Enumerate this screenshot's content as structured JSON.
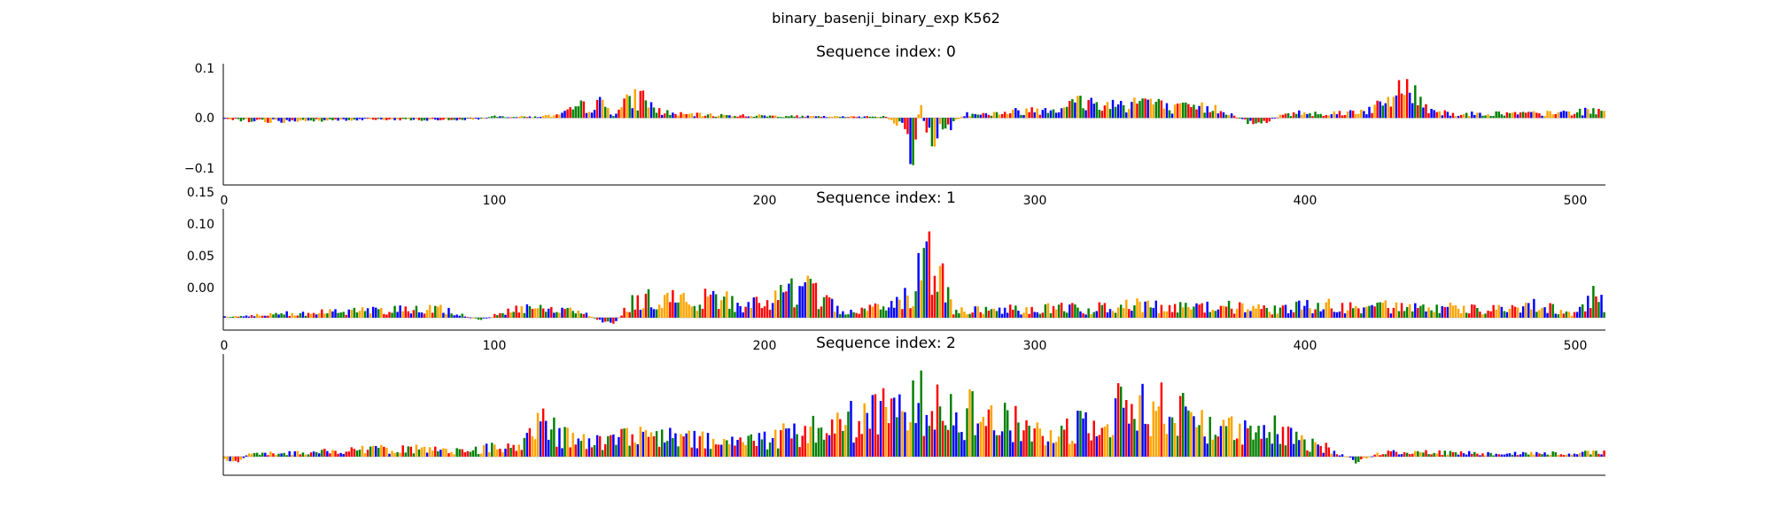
{
  "figure": {
    "suptitle": "binary_basenji_binary_exp K562"
  },
  "palette": {
    "A": "#008000",
    "C": "#0000ff",
    "G": "#ffa500",
    "T": "#ff0000"
  },
  "chart_data": [
    {
      "type": "sequence-logo",
      "title": "Sequence index: 0",
      "xlim": [
        0,
        512
      ],
      "ylim": [
        -0.13,
        0.105
      ],
      "xticks": [
        "0",
        "100",
        "200",
        "300",
        "400",
        "500"
      ],
      "yticks": [
        "0.1",
        "0.0",
        "−0.1"
      ],
      "ytick_values": [
        0.1,
        0.0,
        -0.1
      ],
      "profile": [
        [
          0,
          -0.002
        ],
        [
          10,
          -0.008
        ],
        [
          20,
          -0.01
        ],
        [
          40,
          -0.006
        ],
        [
          60,
          -0.004
        ],
        [
          80,
          -0.006
        ],
        [
          95,
          -0.003
        ],
        [
          100,
          0.004
        ],
        [
          115,
          0.003
        ],
        [
          125,
          0.008
        ],
        [
          132,
          0.03
        ],
        [
          140,
          0.038
        ],
        [
          145,
          0.012
        ],
        [
          150,
          0.045
        ],
        [
          156,
          0.06
        ],
        [
          160,
          0.02
        ],
        [
          168,
          0.01
        ],
        [
          180,
          0.008
        ],
        [
          200,
          0.006
        ],
        [
          215,
          0.004
        ],
        [
          230,
          0.003
        ],
        [
          245,
          0.005
        ],
        [
          250,
          -0.02
        ],
        [
          253,
          -0.05
        ],
        [
          256,
          -0.12
        ],
        [
          258,
          0.05
        ],
        [
          261,
          -0.07
        ],
        [
          265,
          -0.04
        ],
        [
          270,
          -0.02
        ],
        [
          275,
          0.015
        ],
        [
          282,
          0.01
        ],
        [
          290,
          0.015
        ],
        [
          300,
          0.022
        ],
        [
          310,
          0.03
        ],
        [
          318,
          0.045
        ],
        [
          326,
          0.035
        ],
        [
          334,
          0.04
        ],
        [
          342,
          0.05
        ],
        [
          350,
          0.025
        ],
        [
          360,
          0.028
        ],
        [
          370,
          0.025
        ],
        [
          378,
          -0.01
        ],
        [
          385,
          -0.015
        ],
        [
          392,
          0.008
        ],
        [
          400,
          0.015
        ],
        [
          410,
          0.012
        ],
        [
          420,
          0.018
        ],
        [
          428,
          0.03
        ],
        [
          433,
          0.05
        ],
        [
          437,
          0.1
        ],
        [
          441,
          0.06
        ],
        [
          446,
          0.03
        ],
        [
          455,
          0.01
        ],
        [
          470,
          0.012
        ],
        [
          490,
          0.012
        ],
        [
          512,
          0.02
        ]
      ]
    },
    {
      "type": "sequence-logo",
      "title": "Sequence index: 1",
      "xlim": [
        0,
        512
      ],
      "ylim": [
        -0.02,
        0.175
      ],
      "xticks": [
        "0",
        "100",
        "200",
        "300",
        "400",
        "500"
      ],
      "yticks": [
        "0.15",
        "0.10",
        "0.05",
        "0.00"
      ],
      "ytick_values": [
        0.15,
        0.1,
        0.05,
        0.0
      ],
      "profile": [
        [
          0,
          0.002
        ],
        [
          15,
          0.006
        ],
        [
          25,
          0.01
        ],
        [
          35,
          0.012
        ],
        [
          50,
          0.015
        ],
        [
          65,
          0.018
        ],
        [
          80,
          0.02
        ],
        [
          95,
          -0.005
        ],
        [
          105,
          0.015
        ],
        [
          115,
          0.025
        ],
        [
          125,
          0.02
        ],
        [
          135,
          0.01
        ],
        [
          140,
          -0.012
        ],
        [
          145,
          -0.015
        ],
        [
          150,
          0.03
        ],
        [
          160,
          0.045
        ],
        [
          170,
          0.04
        ],
        [
          180,
          0.045
        ],
        [
          190,
          0.035
        ],
        [
          200,
          0.03
        ],
        [
          210,
          0.055
        ],
        [
          216,
          0.07
        ],
        [
          222,
          0.04
        ],
        [
          230,
          0.01
        ],
        [
          240,
          0.02
        ],
        [
          250,
          0.03
        ],
        [
          256,
          0.07
        ],
        [
          259,
          0.17
        ],
        [
          262,
          0.12
        ],
        [
          265,
          0.1
        ],
        [
          270,
          0.02
        ],
        [
          280,
          0.018
        ],
        [
          290,
          0.02
        ],
        [
          300,
          0.02
        ],
        [
          310,
          0.022
        ],
        [
          320,
          0.02
        ],
        [
          330,
          0.025
        ],
        [
          340,
          0.028
        ],
        [
          350,
          0.025
        ],
        [
          360,
          0.022
        ],
        [
          370,
          0.025
        ],
        [
          380,
          0.02
        ],
        [
          390,
          0.02
        ],
        [
          400,
          0.025
        ],
        [
          410,
          0.028
        ],
        [
          420,
          0.02
        ],
        [
          430,
          0.025
        ],
        [
          440,
          0.02
        ],
        [
          450,
          0.022
        ],
        [
          460,
          0.02
        ],
        [
          470,
          0.018
        ],
        [
          480,
          0.022
        ],
        [
          488,
          0.03
        ],
        [
          495,
          0.015
        ],
        [
          500,
          0.01
        ],
        [
          504,
          0.02
        ],
        [
          508,
          0.06
        ],
        [
          512,
          0.02
        ]
      ]
    },
    {
      "type": "sequence-logo",
      "title": "Sequence index: 2",
      "xlim": [
        0,
        512
      ],
      "ylim": [
        -0.02,
        0.11
      ],
      "xticks": [],
      "yticks": [],
      "ytick_values": [],
      "profile": [
        [
          0,
          -0.005
        ],
        [
          5,
          -0.008
        ],
        [
          10,
          0.005
        ],
        [
          30,
          0.006
        ],
        [
          50,
          0.01
        ],
        [
          70,
          0.012
        ],
        [
          90,
          0.008
        ],
        [
          100,
          0.015
        ],
        [
          110,
          0.02
        ],
        [
          115,
          0.045
        ],
        [
          120,
          0.05
        ],
        [
          125,
          0.03
        ],
        [
          135,
          0.02
        ],
        [
          145,
          0.025
        ],
        [
          155,
          0.03
        ],
        [
          165,
          0.028
        ],
        [
          175,
          0.025
        ],
        [
          185,
          0.02
        ],
        [
          195,
          0.025
        ],
        [
          210,
          0.035
        ],
        [
          220,
          0.04
        ],
        [
          230,
          0.05
        ],
        [
          238,
          0.06
        ],
        [
          245,
          0.065
        ],
        [
          252,
          0.07
        ],
        [
          258,
          0.08
        ],
        [
          262,
          0.1
        ],
        [
          268,
          0.085
        ],
        [
          275,
          0.07
        ],
        [
          282,
          0.06
        ],
        [
          290,
          0.05
        ],
        [
          298,
          0.045
        ],
        [
          305,
          0.03
        ],
        [
          312,
          0.04
        ],
        [
          318,
          0.055
        ],
        [
          324,
          0.065
        ],
        [
          330,
          0.07
        ],
        [
          336,
          0.075
        ],
        [
          342,
          0.08
        ],
        [
          348,
          0.07
        ],
        [
          355,
          0.065
        ],
        [
          362,
          0.055
        ],
        [
          370,
          0.045
        ],
        [
          378,
          0.035
        ],
        [
          385,
          0.03
        ],
        [
          390,
          0.04
        ],
        [
          395,
          0.03
        ],
        [
          400,
          0.02
        ],
        [
          410,
          0.012
        ],
        [
          420,
          -0.008
        ],
        [
          430,
          0.008
        ],
        [
          450,
          0.006
        ],
        [
          470,
          0.005
        ],
        [
          490,
          0.005
        ],
        [
          512,
          0.006
        ]
      ]
    }
  ]
}
